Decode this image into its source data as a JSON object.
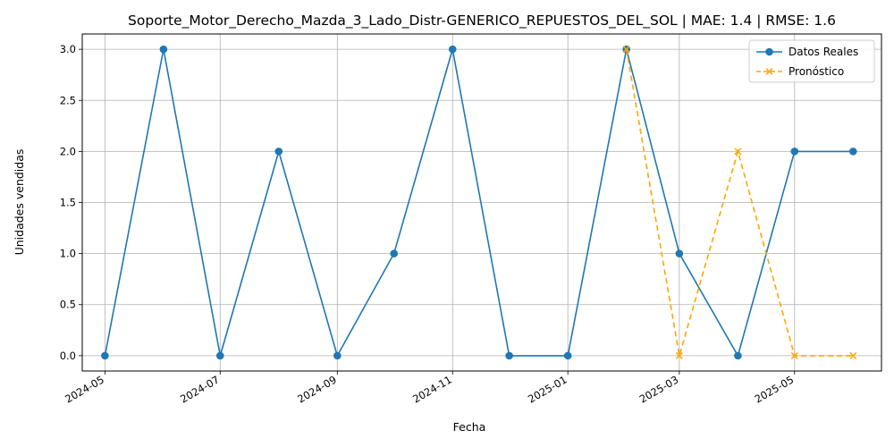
{
  "chart_data": {
    "type": "line",
    "title": "Soporte_Motor_Derecho_Mazda_3_Lado_Distr-GENERICO_REPUESTOS_DEL_SOL | MAE: 1.4 | RMSE: 1.6",
    "xlabel": "Fecha",
    "ylabel": "Unidades vendidas",
    "ylim": [
      -0.15,
      3.15
    ],
    "xlim": [
      "2024-04-19",
      "2025-06-16"
    ],
    "grid": true,
    "legend_position": "top-right",
    "x_ticks": [
      "2024-05-01",
      "2024-07-01",
      "2024-09-01",
      "2024-11-01",
      "2025-01-01",
      "2025-03-01",
      "2025-05-01"
    ],
    "x_tick_labels": [
      "2024-05",
      "2024-07",
      "2024-09",
      "2024-11",
      "2025-01",
      "2025-03",
      "2025-05"
    ],
    "y_ticks": [
      0.0,
      0.5,
      1.0,
      1.5,
      2.0,
      2.5,
      3.0
    ],
    "y_tick_labels": [
      "0.0",
      "0.5",
      "1.0",
      "1.5",
      "2.0",
      "2.5",
      "3.0"
    ],
    "series": [
      {
        "name": "Datos Reales",
        "color": "#1f77b4",
        "style": "solid",
        "marker": "circle",
        "x": [
          "2024-05-01",
          "2024-06-01",
          "2024-07-01",
          "2024-08-01",
          "2024-09-01",
          "2024-10-01",
          "2024-11-01",
          "2024-12-01",
          "2025-01-01",
          "2025-02-01",
          "2025-03-01",
          "2025-04-01",
          "2025-05-01",
          "2025-06-01"
        ],
        "values": [
          0,
          3,
          0,
          2,
          0,
          1,
          3,
          0,
          0,
          3,
          1,
          0,
          2,
          2
        ]
      },
      {
        "name": "Pronóstico",
        "color": "#ffa500",
        "style": "dashed",
        "marker": "x",
        "x": [
          "2025-02-01",
          "2025-03-01",
          "2025-04-01",
          "2025-05-01",
          "2025-06-01"
        ],
        "values": [
          3.0,
          0.0,
          2.0,
          0.0,
          0.0
        ]
      }
    ]
  }
}
